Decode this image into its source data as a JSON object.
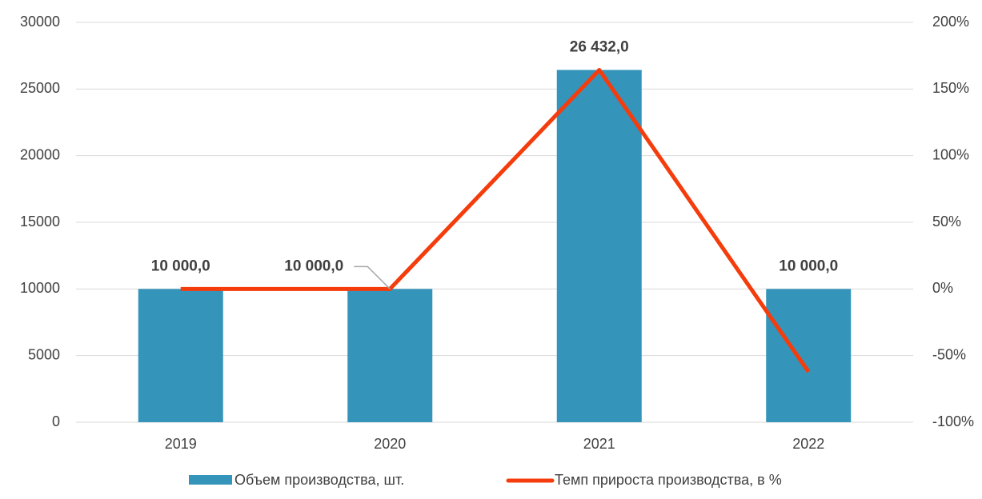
{
  "chart_data": {
    "type": "bar_line",
    "categories": [
      "2019",
      "2020",
      "2021",
      "2022"
    ],
    "series": [
      {
        "name": "Объем производства, шт.",
        "type": "bar",
        "color": "#3494ba",
        "values": [
          10000,
          10000,
          26432,
          10000
        ],
        "value_labels": [
          "10 000,0",
          "10 000,0",
          "26 432,0",
          "10 000,0"
        ]
      },
      {
        "name": "Темп прироста производства, в %",
        "type": "line",
        "axis": "y2",
        "color": "#f53c0c",
        "values": [
          0,
          0,
          164.32,
          -62.17
        ]
      }
    ],
    "ylim": [
      0,
      30000
    ],
    "yticks": [
      0,
      5000,
      10000,
      15000,
      20000,
      25000,
      30000
    ],
    "y2lim": [
      -100,
      200
    ],
    "y2ticks": [
      {
        "value": -100,
        "label": "-100%"
      },
      {
        "value": -50,
        "label": "-50%"
      },
      {
        "value": 0,
        "label": "0%"
      },
      {
        "value": 50,
        "label": "50%"
      },
      {
        "value": 100,
        "label": "100%"
      },
      {
        "value": 150,
        "label": "150%"
      },
      {
        "value": 200,
        "label": "200%"
      }
    ],
    "grid": true,
    "legend": "bottom"
  }
}
